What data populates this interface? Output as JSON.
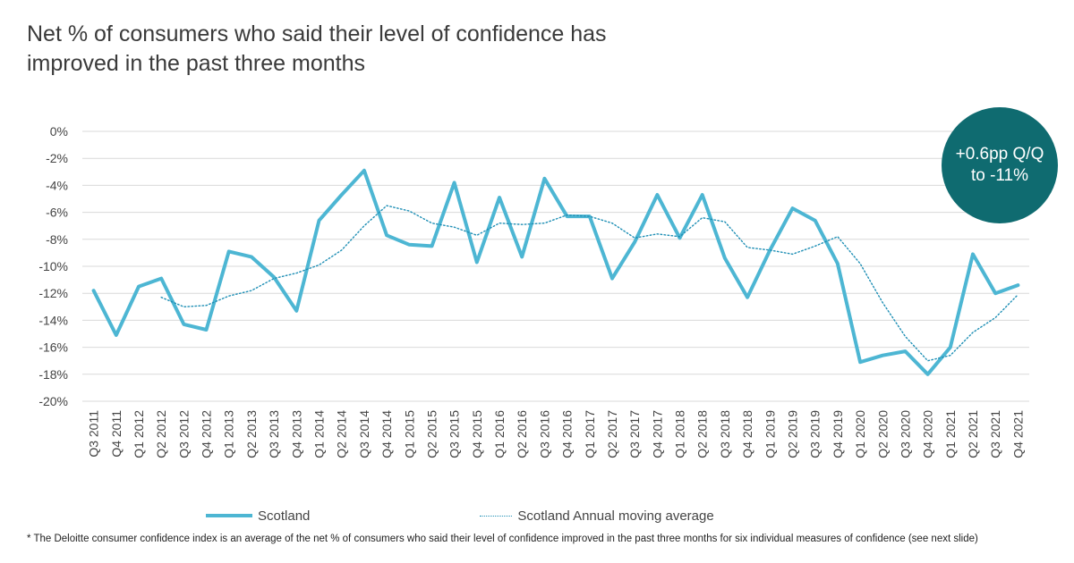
{
  "title": {
    "line1": "Net % of consumers who said their level of confidence has",
    "line2": "improved in the past three months"
  },
  "callout": {
    "line1": "+0.6pp Q/Q",
    "line2": "to -11%",
    "color": "#0f6b70"
  },
  "footnote": "* The Deloitte consumer confidence index is an average of the net % of consumers who said their level of confidence improved in the past three months for six individual measures of confidence (see next slide)",
  "chart_data": {
    "type": "line",
    "title": "Net % of consumers who said their level of confidence has improved in the past three months",
    "xlabel": "",
    "ylabel": "",
    "ylim": [
      -20,
      0
    ],
    "yticks": [
      0,
      -2,
      -4,
      -6,
      -8,
      -10,
      -12,
      -14,
      -16,
      -18,
      -20
    ],
    "ytick_labels": [
      "0%",
      "-2%",
      "-4%",
      "-6%",
      "-8%",
      "-10%",
      "-12%",
      "-14%",
      "-16%",
      "-18%",
      "-20%"
    ],
    "grid": true,
    "legend_position": "bottom",
    "categories": [
      "Q3 2011",
      "Q4 2011",
      "Q1 2012",
      "Q2 2012",
      "Q3 2012",
      "Q4 2012",
      "Q1 2013",
      "Q2 2013",
      "Q3 2013",
      "Q4 2013",
      "Q1 2014",
      "Q2 2014",
      "Q3 2014",
      "Q4 2014",
      "Q1 2015",
      "Q2 2015",
      "Q3 2015",
      "Q4 2015",
      "Q1 2016",
      "Q2 2016",
      "Q3 2016",
      "Q4 2016",
      "Q1 2017",
      "Q2 2017",
      "Q3 2017",
      "Q4 2017",
      "Q1 2018",
      "Q2 2018",
      "Q3 2018",
      "Q4 2018",
      "Q1 2019",
      "Q2 2019",
      "Q3 2019",
      "Q4 2019",
      "Q1 2020",
      "Q2 2020",
      "Q3 2020",
      "Q4 2020",
      "Q1 2021",
      "Q2 2021",
      "Q3 2021",
      "Q4 2021"
    ],
    "series": [
      {
        "name": "Scotland",
        "style": "solid",
        "color": "#4db6d3",
        "values": [
          -11.8,
          -15.1,
          -11.5,
          -10.9,
          -14.3,
          -14.7,
          -8.9,
          -9.3,
          -10.8,
          -13.3,
          -6.6,
          -4.7,
          -2.9,
          -7.7,
          -8.4,
          -8.5,
          -3.8,
          -9.7,
          -4.9,
          -9.3,
          -3.5,
          -6.3,
          -6.3,
          -10.9,
          -8.2,
          -4.7,
          -7.9,
          -4.7,
          -9.4,
          -12.3,
          -8.8,
          -5.7,
          -6.6,
          -9.8,
          -17.1,
          -16.6,
          -16.3,
          -18.0,
          -16.0,
          -9.1,
          -12.0,
          -11.4
        ]
      },
      {
        "name": "Scotland Annual moving average",
        "style": "dotted",
        "color": "#1f8fb5",
        "values": [
          null,
          null,
          null,
          -12.3,
          -13.0,
          -12.9,
          -12.2,
          -11.8,
          -10.9,
          -10.5,
          -9.9,
          -8.8,
          -7.0,
          -5.5,
          -5.9,
          -6.8,
          -7.1,
          -7.7,
          -6.8,
          -6.9,
          -6.8,
          -6.2,
          -6.3,
          -6.8,
          -7.9,
          -7.6,
          -7.8,
          -6.4,
          -6.7,
          -8.6,
          -8.8,
          -9.1,
          -8.5,
          -7.8,
          -9.8,
          -12.7,
          -15.2,
          -17.0,
          -16.6,
          -14.9,
          -13.8,
          -12.1
        ]
      }
    ]
  }
}
